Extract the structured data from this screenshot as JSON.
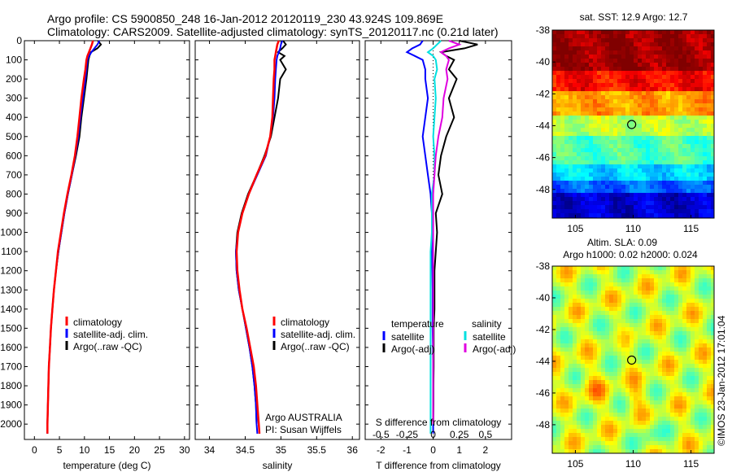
{
  "header": {
    "title_line1": "Argo profile: CS 5900850_248 16-Jan-2012 20120119_230 43.924S 109.869E",
    "title_line2": "Climatology: CARS2009. Satellite-adjusted climatology: synTS_20120117.nc (0.21d later)"
  },
  "colors": {
    "climatology": "#ff0000",
    "satellite": "#0000ff",
    "argo": "#000000",
    "temp_sat_diff": "#0000ff",
    "temp_argo_diff": "#000000",
    "sal_sat_diff": "#00e0e0",
    "sal_argo_diff": "#e000e0"
  },
  "chart_data": [
    {
      "id": "temperature",
      "type": "line",
      "xlabel": "temperature (deg C)",
      "xlim": [
        -2,
        31
      ],
      "xticks": [
        0,
        5,
        10,
        15,
        20,
        25,
        30
      ],
      "ylim": [
        2080,
        0
      ],
      "yticks": [
        0,
        100,
        200,
        300,
        400,
        500,
        600,
        700,
        800,
        900,
        1000,
        1100,
        1200,
        1300,
        1400,
        1500,
        1600,
        1700,
        1800,
        1900,
        2000
      ],
      "depth": [
        0,
        20,
        40,
        60,
        80,
        100,
        150,
        200,
        300,
        400,
        500,
        600,
        700,
        800,
        900,
        1000,
        1100,
        1200,
        1300,
        1400,
        1500,
        1600,
        1700,
        1800,
        1900,
        2000,
        2050
      ],
      "legend": [
        "climatology",
        "satellite-adj. clim.",
        "Argo(..raw -QC)"
      ],
      "series": [
        {
          "name": "climatology",
          "color_key": "climatology",
          "values": [
            11.7,
            11.5,
            11.2,
            10.9,
            10.6,
            10.4,
            10.2,
            9.9,
            9.4,
            9.0,
            8.6,
            8.1,
            7.4,
            6.6,
            5.9,
            5.3,
            4.7,
            4.3,
            3.9,
            3.6,
            3.3,
            3.1,
            2.9,
            2.8,
            2.7,
            2.6,
            2.6
          ]
        },
        {
          "name": "satellite-adj. clim.",
          "color_key": "satellite",
          "values": [
            13.0,
            12.6,
            12.0,
            11.4,
            10.9,
            10.6,
            10.4,
            10.2,
            9.7,
            9.2,
            8.8,
            8.2,
            7.5,
            6.7,
            6.0,
            5.4,
            4.8,
            4.3,
            3.9,
            3.6,
            3.3,
            3.1,
            2.9,
            2.8,
            2.7,
            2.6,
            2.6
          ]
        },
        {
          "name": "Argo(..raw -QC)",
          "color_key": "argo",
          "values": [
            12.7,
            13.3,
            12.6,
            11.3,
            11.0,
            10.8,
            10.6,
            10.4,
            9.9,
            9.4,
            9.0,
            8.3,
            7.5,
            6.7,
            6.0,
            5.4,
            4.8,
            4.3,
            3.9,
            3.6,
            3.3,
            3.1,
            2.9,
            2.8,
            2.7,
            2.6
          ]
        }
      ]
    },
    {
      "id": "salinity",
      "type": "line",
      "xlabel": "salinity",
      "xlim": [
        33.8,
        36.1
      ],
      "xticks": [
        34,
        34.5,
        35,
        35.5,
        36
      ],
      "ylim": [
        2080,
        0
      ],
      "depth": [
        0,
        20,
        40,
        60,
        80,
        100,
        150,
        200,
        300,
        400,
        500,
        600,
        700,
        800,
        900,
        1000,
        1100,
        1200,
        1300,
        1400,
        1500,
        1600,
        1700,
        1800,
        1900,
        2000,
        2050
      ],
      "legend": [
        "climatology",
        "satellite-adj. clim.",
        "Argo(..raw -QC)"
      ],
      "annotation_line1": "Argo AUSTRALIA",
      "annotation_line2": "PI: Susan Wijffels",
      "series": [
        {
          "name": "climatology",
          "color_key": "climatology",
          "values": [
            34.97,
            34.95,
            34.94,
            34.93,
            34.92,
            34.91,
            34.91,
            34.9,
            34.89,
            34.88,
            34.85,
            34.78,
            34.66,
            34.55,
            34.46,
            34.4,
            34.38,
            34.39,
            34.42,
            34.46,
            34.52,
            34.57,
            34.62,
            34.65,
            34.67,
            34.69,
            34.7
          ]
        },
        {
          "name": "satellite-adj. clim.",
          "color_key": "satellite",
          "values": [
            35.02,
            35.0,
            34.99,
            34.97,
            34.95,
            34.94,
            34.93,
            34.92,
            34.91,
            34.89,
            34.85,
            34.79,
            34.67,
            34.55,
            34.46,
            34.4,
            34.37,
            34.38,
            34.41,
            34.46,
            34.51,
            34.56,
            34.6,
            34.63,
            34.65,
            34.66,
            34.67
          ]
        },
        {
          "name": "Argo(..raw -QC)",
          "color_key": "argo",
          "values": [
            35.03,
            35.07,
            35.02,
            34.96,
            35.05,
            34.99,
            35.07,
            34.99,
            34.96,
            34.91,
            34.86,
            34.77,
            34.66,
            34.54,
            34.45,
            34.39,
            34.37,
            34.38,
            34.41,
            34.46,
            34.51,
            34.56,
            34.6,
            34.63,
            34.65,
            34.66
          ]
        }
      ]
    },
    {
      "id": "difference",
      "type": "line",
      "xlabel": "T difference from climatology",
      "xlabel_top": "S difference from climatology",
      "xlim": [
        -2.6,
        3.0
      ],
      "xticks": [
        -2,
        -1,
        0,
        1,
        2
      ],
      "s_ticks": [
        {
          "label": "-0.5",
          "x": -2
        },
        {
          "label": "-0.25",
          "x": -1
        },
        {
          "label": "0",
          "x": 0
        },
        {
          "label": "0.25",
          "x": 1
        },
        {
          "label": "0.5",
          "x": 2
        }
      ],
      "ylim": [
        2080,
        0
      ],
      "depth": [
        0,
        20,
        40,
        60,
        80,
        100,
        150,
        200,
        300,
        400,
        500,
        600,
        700,
        800,
        900,
        1000,
        1100,
        1200,
        1300,
        1400,
        1500,
        1600,
        1700,
        1800,
        1900,
        2000,
        2050
      ],
      "legend_temperature_title": "temperature",
      "legend_salinity_title": "salinity",
      "legend_satellite": "satellite",
      "legend_argo": "Argo(-adj)",
      "series": [
        {
          "name": "satellite",
          "group": "temperature",
          "color_key": "temp_sat_diff",
          "values": [
            -0.4,
            -0.5,
            -0.8,
            -1.0,
            -0.7,
            -0.4,
            -0.3,
            -0.3,
            -0.2,
            -0.3,
            -0.4,
            -0.3,
            -0.2,
            -0.1,
            -0.05,
            -0.05,
            -0.05,
            -0.03,
            -0.02,
            -0.02,
            -0.02,
            -0.01,
            0,
            0,
            0,
            0,
            0
          ]
        },
        {
          "name": "Argo(-adj)",
          "group": "temperature",
          "color_key": "temp_argo_diff",
          "values": [
            1.0,
            1.7,
            1.2,
            0.3,
            0.5,
            0.8,
            0.6,
            0.9,
            0.6,
            0.8,
            0.5,
            0.3,
            0.2,
            0.35,
            0.1,
            0.15,
            0.1,
            0.05,
            0.05,
            0.05,
            0.02,
            0.02,
            0.02,
            0.01,
            0.01,
            0
          ]
        },
        {
          "name": "satellite",
          "group": "salinity",
          "color_key": "sal_sat_diff",
          "values": [
            0.3,
            0.15,
            0.0,
            -0.2,
            0.0,
            0.1,
            0.15,
            0.05,
            0.1,
            0.05,
            0.0,
            0.05,
            0.05,
            -0.05,
            -0.05,
            -0.05,
            -0.1,
            -0.1,
            -0.1,
            -0.1,
            -0.1,
            -0.1,
            -0.1,
            -0.1,
            -0.1,
            -0.1,
            -0.1
          ]
        },
        {
          "name": "Argo(-adj)",
          "group": "salinity",
          "color_key": "sal_argo_diff",
          "values": [
            0.6,
            1.0,
            0.6,
            0.3,
            0.5,
            0.6,
            0.5,
            0.55,
            0.4,
            0.35,
            0.2,
            0.1,
            0.05,
            0.0,
            0.0,
            0.0,
            0.0,
            0.0,
            0.0,
            0.0,
            0.0,
            0.0,
            0.0,
            0.0,
            0.0,
            0.0
          ]
        }
      ]
    },
    {
      "id": "sst_map",
      "type": "heatmap",
      "title": "sat. SST: 12.9 Argo: 12.7",
      "xlim": [
        103,
        117
      ],
      "ylim": [
        -49.8,
        -38
      ],
      "xticks": [
        105,
        110,
        115
      ],
      "yticks": [
        -38,
        -40,
        -42,
        -44,
        -46,
        -48
      ],
      "marker": {
        "lon": 109.869,
        "lat": -43.924
      }
    },
    {
      "id": "sla_map",
      "type": "heatmap",
      "title_line1": "Altim. SLA: 0.09",
      "title_line2": "Argo h1000: 0.02 h2000: 0.024",
      "xlim": [
        103,
        117
      ],
      "ylim": [
        -49.8,
        -38
      ],
      "xticks": [
        105,
        110,
        115
      ],
      "yticks": [
        -38,
        -40,
        -42,
        -44,
        -46,
        -48
      ],
      "marker": {
        "lon": 109.869,
        "lat": -43.924
      }
    }
  ],
  "footer": {
    "credit": "©IMOS 23-Jan-2012 17:01:04"
  }
}
